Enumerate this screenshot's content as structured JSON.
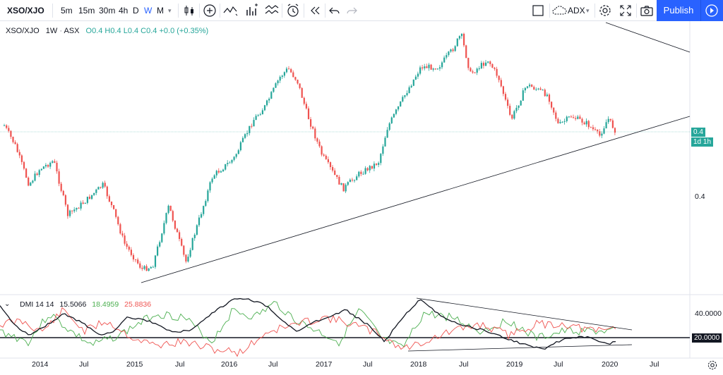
{
  "toolbar": {
    "symbol": "XSO/XJO",
    "timeframes": [
      "5m",
      "15m",
      "30m",
      "4h",
      "D",
      "W",
      "M"
    ],
    "active_timeframe": "W",
    "compare_label": "ADX",
    "publish_label": "Publish"
  },
  "legend": {
    "symbol": "XSO/XJO",
    "interval": "1W",
    "exchange": "ASX",
    "ohlc": "O0.4 H0.4 L0.4 C0.4 +0.0 (+0.35%)"
  },
  "price_axis": {
    "last_price": "0.4",
    "countdown": "1d 1h",
    "tick_label": "0.4"
  },
  "dmi": {
    "label": "DMI 14 14",
    "adx": "15.5066",
    "plus_di": "18.4959",
    "minus_di": "25.8836",
    "tick_40": "40.0000",
    "tick_20": "20.0000"
  },
  "time_axis": [
    "2014",
    "Jul",
    "2015",
    "Jul",
    "2016",
    "Jul",
    "2017",
    "Jul",
    "2018",
    "Jul",
    "2019",
    "Jul",
    "2020",
    "Jul"
  ],
  "colors": {
    "up": "#26a69a",
    "down": "#ef5350",
    "accent": "#2962ff",
    "adx": "#000000",
    "plus_di": "#4caf50",
    "minus_di": "#ef5350"
  },
  "chart_data": {
    "type": "candlestick",
    "series_shape": "weekly closes approx",
    "x_labels": [
      "2014",
      "Jul",
      "2015",
      "Jul",
      "2016",
      "Jul",
      "2017",
      "Jul",
      "2018",
      "Jul",
      "2019",
      "Jul",
      "2020",
      "Jul"
    ]
  }
}
